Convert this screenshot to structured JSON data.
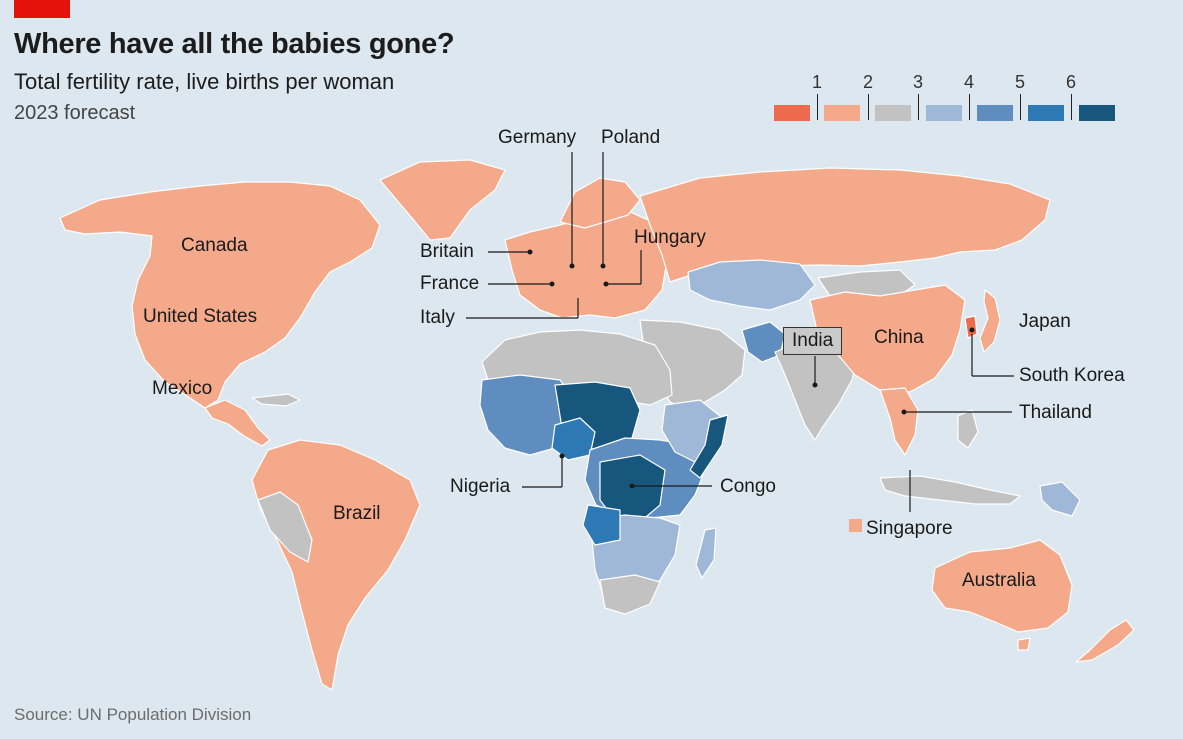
{
  "header": {
    "title": "Where have all the babies gone?",
    "subtitle": "Total fertility rate, live births per woman",
    "note": "2023 forecast"
  },
  "legend": {
    "ticks": [
      "1",
      "2",
      "3",
      "4",
      "5",
      "6"
    ],
    "colors": [
      "#ee6a4c",
      "#f5a98b",
      "#c2c2c2",
      "#9fb8d7",
      "#5f8dbf",
      "#2c79b5",
      "#17577e"
    ]
  },
  "labels": {
    "canada": "Canada",
    "united_states": "United States",
    "mexico": "Mexico",
    "brazil": "Brazil",
    "britain": "Britain",
    "france": "France",
    "italy": "Italy",
    "germany": "Germany",
    "poland": "Poland",
    "hungary": "Hungary",
    "india": "India",
    "china": "China",
    "japan": "Japan",
    "south_korea": "South Korea",
    "thailand": "Thailand",
    "singapore": "Singapore",
    "nigeria": "Nigeria",
    "congo": "Congo",
    "australia": "Australia"
  },
  "source": "Source: UN Population Division"
}
